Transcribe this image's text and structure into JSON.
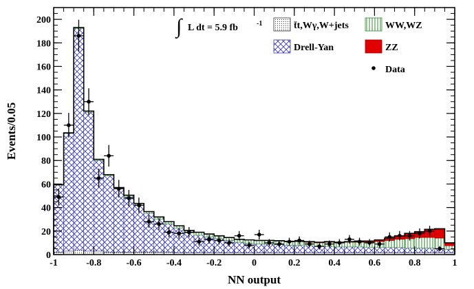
{
  "chart_data": {
    "type": "histogram",
    "xlabel": "NN output",
    "ylabel": "Events/0.05",
    "xlim": [
      -1,
      1
    ],
    "ylim": [
      0,
      210
    ],
    "x_ticks": [
      "-1",
      "-0.8",
      "-0.6",
      "-0.4",
      "-0.2",
      "0",
      "0.2",
      "0.4",
      "0.6",
      "0.8",
      "1"
    ],
    "y_ticks": [
      "0",
      "20",
      "40",
      "60",
      "80",
      "100",
      "120",
      "140",
      "160",
      "180",
      "200"
    ],
    "bin_width": 0.05,
    "bin_edges": [
      -1.0,
      -0.95,
      -0.9,
      -0.85,
      -0.8,
      -0.75,
      -0.7,
      -0.65,
      -0.6,
      -0.55,
      -0.5,
      -0.45,
      -0.4,
      -0.35,
      -0.3,
      -0.25,
      -0.2,
      -0.15,
      -0.1,
      -0.05,
      0.0,
      0.05,
      0.1,
      0.15,
      0.2,
      0.25,
      0.3,
      0.35,
      0.4,
      0.45,
      0.5,
      0.55,
      0.6,
      0.65,
      0.7,
      0.75,
      0.8,
      0.85,
      0.9,
      0.95
    ],
    "annotation": {
      "prefix": "∫",
      "main": "L dt = 5.9 fb",
      "sup": "-1"
    },
    "legend": [
      {
        "key": "ttbar",
        "label": "t̄t,Wγ,W+jets",
        "style": "dots"
      },
      {
        "key": "ww",
        "label": "WW,WZ",
        "style": "vlines",
        "color": "#2e8b2e"
      },
      {
        "key": "dy",
        "label": "Drell-Yan",
        "style": "crosshatch",
        "color": "#3a3ab0"
      },
      {
        "key": "zz",
        "label": "ZZ",
        "style": "solid",
        "color": "#e00000"
      },
      {
        "key": "data",
        "label": "Data",
        "style": "marker"
      }
    ],
    "series": [
      {
        "key": "ttbar",
        "name": "t̄t,Wγ,W+jets",
        "values": [
          2,
          3,
          4,
          3,
          3,
          2,
          2,
          2,
          2,
          2,
          2,
          2,
          1.5,
          1.5,
          1.5,
          1.5,
          1.5,
          1.5,
          1.5,
          1.5,
          1.5,
          1.5,
          1.5,
          1.5,
          1.5,
          1.5,
          1.5,
          1.5,
          1.5,
          1.5,
          1.5,
          1.5,
          1.5,
          1.5,
          1.5,
          1.5,
          1.5,
          1.5,
          1.5,
          1.5
        ]
      },
      {
        "key": "dy",
        "name": "Drell-Yan",
        "values": [
          57,
          100,
          188,
          118,
          77,
          65,
          54,
          47,
          40,
          33,
          28,
          24,
          21,
          17,
          15,
          13.5,
          12,
          10.5,
          9,
          8,
          7.5,
          7.5,
          7,
          6.5,
          6.5,
          6,
          5.5,
          5.5,
          5,
          5,
          5,
          4.5,
          4.5,
          4.5,
          4.5,
          4,
          4,
          4,
          3.5,
          3
        ]
      },
      {
        "key": "ww",
        "name": "WW,WZ",
        "values": [
          0.5,
          0.5,
          1,
          1,
          1,
          1,
          1,
          1.5,
          1.5,
          1.5,
          2,
          2,
          2,
          2,
          2.5,
          2.5,
          2.5,
          2.5,
          2.5,
          3,
          3,
          3,
          3,
          3,
          3,
          3,
          3,
          3.5,
          3.5,
          4,
          4,
          4.5,
          5,
          6,
          7,
          8,
          9,
          9,
          9,
          3
        ]
      },
      {
        "key": "zz",
        "name": "ZZ",
        "values": [
          0,
          0,
          0,
          0,
          0,
          0,
          0,
          0,
          0,
          0,
          0,
          0,
          0,
          0,
          0,
          0,
          0,
          0,
          0,
          0,
          0,
          0,
          0.3,
          0.3,
          0.3,
          0.5,
          0.5,
          0.5,
          0.5,
          0.5,
          1,
          1,
          1.5,
          2,
          3,
          4.5,
          5,
          7,
          8,
          2.5
        ]
      }
    ],
    "data": {
      "x": [
        -0.975,
        -0.925,
        -0.875,
        -0.825,
        -0.775,
        -0.725,
        -0.675,
        -0.625,
        -0.575,
        -0.525,
        -0.475,
        -0.425,
        -0.375,
        -0.325,
        -0.275,
        -0.225,
        -0.175,
        -0.125,
        -0.075,
        -0.025,
        0.025,
        0.075,
        0.125,
        0.175,
        0.225,
        0.275,
        0.325,
        0.375,
        0.425,
        0.475,
        0.525,
        0.575,
        0.625,
        0.675,
        0.725,
        0.775,
        0.825,
        0.875,
        0.925
      ],
      "y": [
        49,
        110,
        186,
        130,
        65,
        84,
        56,
        48,
        42,
        28,
        26,
        19,
        18,
        19,
        11,
        13,
        12,
        10,
        16,
        8,
        17,
        10,
        9,
        11,
        12,
        9,
        7,
        9,
        10,
        13,
        11,
        10,
        9,
        15,
        16,
        16,
        18,
        20,
        5
      ]
    }
  }
}
